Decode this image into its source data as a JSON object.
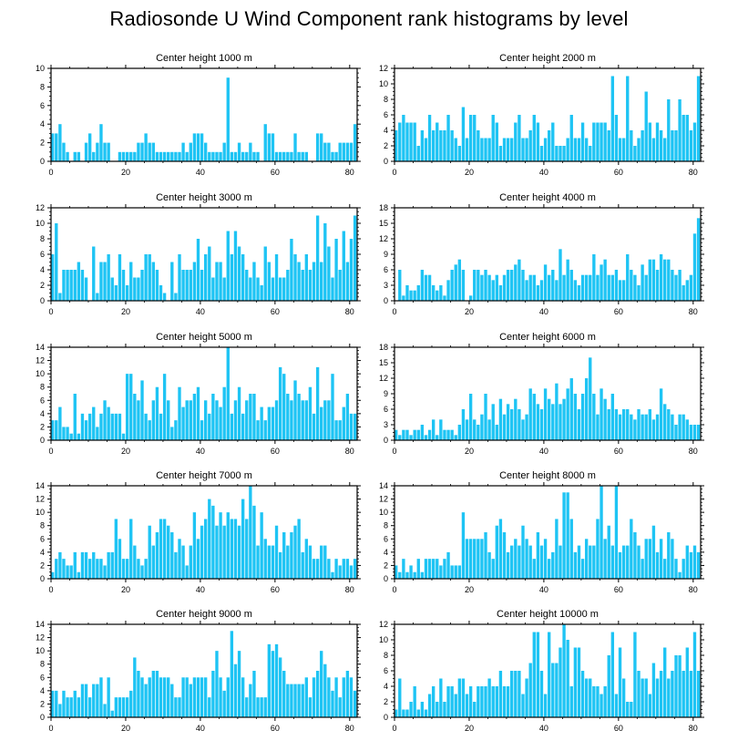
{
  "title": "Radiosonde U Wind Component rank histograms by level",
  "bar_color": "#1ec4f4",
  "chart_data": [
    {
      "type": "bar",
      "title": "Center height 1000 m",
      "xlim": [
        0,
        82
      ],
      "xticks": [
        0,
        20,
        40,
        60,
        80
      ],
      "ylim": [
        0,
        10
      ],
      "yticks": [
        0,
        2,
        4,
        6,
        8,
        10
      ],
      "values": [
        3,
        3,
        4,
        2,
        1,
        0,
        1,
        1,
        0,
        2,
        3,
        1,
        2,
        4,
        2,
        2,
        0,
        0,
        1,
        1,
        1,
        1,
        1,
        2,
        2,
        3,
        2,
        2,
        1,
        1,
        1,
        1,
        1,
        1,
        1,
        2,
        1,
        2,
        3,
        3,
        3,
        2,
        1,
        1,
        1,
        1,
        2,
        9,
        1,
        1,
        2,
        1,
        1,
        2,
        1,
        1,
        0,
        4,
        3,
        3,
        1,
        1,
        1,
        1,
        1,
        3,
        1,
        1,
        1,
        0,
        0,
        3,
        3,
        2,
        2,
        1,
        1,
        2,
        2,
        2,
        2,
        4
      ]
    },
    {
      "type": "bar",
      "title": "Center height 2000 m",
      "xlim": [
        0,
        82
      ],
      "xticks": [
        0,
        20,
        40,
        60,
        80
      ],
      "ylim": [
        0,
        12
      ],
      "yticks": [
        0,
        2,
        4,
        6,
        8,
        10,
        12
      ],
      "values": [
        4,
        5,
        6,
        5,
        5,
        5,
        2,
        4,
        3,
        6,
        4,
        5,
        4,
        4,
        6,
        4,
        3,
        2,
        7,
        3,
        6,
        6,
        4,
        3,
        3,
        3,
        6,
        5,
        2,
        3,
        3,
        3,
        5,
        6,
        3,
        3,
        4,
        6,
        5,
        2,
        3,
        4,
        5,
        2,
        2,
        2,
        3,
        6,
        3,
        3,
        5,
        3,
        2,
        5,
        5,
        5,
        5,
        4,
        11,
        6,
        3,
        3,
        11,
        4,
        2,
        3,
        4,
        9,
        5,
        3,
        5,
        4,
        3,
        8,
        4,
        4,
        8,
        6,
        6,
        4,
        5,
        11
      ]
    },
    {
      "type": "bar",
      "title": "Center height 3000 m",
      "xlim": [
        0,
        82
      ],
      "xticks": [
        0,
        20,
        40,
        60,
        80
      ],
      "ylim": [
        0,
        12
      ],
      "yticks": [
        0,
        2,
        4,
        6,
        8,
        10,
        12
      ],
      "values": [
        6,
        10,
        1,
        4,
        4,
        4,
        4,
        5,
        4,
        3,
        0,
        7,
        1,
        5,
        5,
        6,
        3,
        2,
        6,
        4,
        2,
        5,
        3,
        3,
        4,
        6,
        6,
        5,
        4,
        2,
        1,
        0,
        5,
        1,
        6,
        4,
        4,
        4,
        5,
        8,
        4,
        6,
        7,
        3,
        5,
        5,
        3,
        9,
        6,
        9,
        7,
        6,
        4,
        3,
        5,
        3,
        2,
        7,
        5,
        3,
        6,
        3,
        3,
        4,
        8,
        6,
        5,
        4,
        6,
        4,
        5,
        11,
        5,
        10,
        7,
        3,
        8,
        4,
        9,
        5,
        8,
        11
      ]
    },
    {
      "type": "bar",
      "title": "Center height 4000 m",
      "xlim": [
        0,
        82
      ],
      "xticks": [
        0,
        20,
        40,
        60,
        80
      ],
      "ylim": [
        0,
        18
      ],
      "yticks": [
        0,
        3,
        6,
        9,
        12,
        15,
        18
      ],
      "values": [
        0,
        6,
        1,
        3,
        2,
        2,
        3,
        6,
        5,
        5,
        3,
        2,
        3,
        1,
        4,
        6,
        7,
        8,
        6,
        0,
        1,
        6,
        6,
        5,
        6,
        5,
        4,
        5,
        3,
        5,
        6,
        6,
        7,
        8,
        6,
        4,
        5,
        5,
        3,
        4,
        7,
        5,
        6,
        4,
        10,
        5,
        8,
        6,
        4,
        3,
        5,
        5,
        5,
        9,
        5,
        7,
        8,
        5,
        5,
        6,
        4,
        4,
        9,
        6,
        5,
        3,
        7,
        5,
        8,
        8,
        6,
        9,
        8,
        8,
        6,
        5,
        6,
        3,
        4,
        5,
        13,
        16
      ]
    },
    {
      "type": "bar",
      "title": "Center height 5000 m",
      "xlim": [
        0,
        82
      ],
      "xticks": [
        0,
        20,
        40,
        60,
        80
      ],
      "ylim": [
        0,
        14
      ],
      "yticks": [
        0,
        2,
        4,
        6,
        8,
        10,
        12,
        14
      ],
      "values": [
        3,
        3,
        5,
        2,
        2,
        1,
        7,
        1,
        4,
        3,
        4,
        5,
        2,
        4,
        6,
        5,
        4,
        4,
        4,
        1,
        10,
        10,
        7,
        6,
        9,
        4,
        3,
        6,
        8,
        4,
        10,
        6,
        2,
        3,
        8,
        5,
        6,
        6,
        7,
        8,
        3,
        6,
        4,
        7,
        6,
        5,
        8,
        14,
        4,
        6,
        8,
        4,
        6,
        7,
        7,
        3,
        5,
        3,
        5,
        5,
        6,
        11,
        10,
        7,
        6,
        9,
        7,
        6,
        6,
        8,
        4,
        11,
        5,
        6,
        6,
        10,
        3,
        3,
        5,
        7,
        4,
        4
      ]
    },
    {
      "type": "bar",
      "title": "Center height 6000 m",
      "xlim": [
        0,
        82
      ],
      "xticks": [
        0,
        20,
        40,
        60,
        80
      ],
      "ylim": [
        0,
        18
      ],
      "yticks": [
        0,
        3,
        6,
        9,
        12,
        15,
        18
      ],
      "values": [
        2,
        1,
        2,
        2,
        1,
        2,
        2,
        3,
        1,
        2,
        4,
        1,
        4,
        2,
        2,
        2,
        1,
        3,
        6,
        4,
        9,
        4,
        3,
        5,
        9,
        4,
        7,
        3,
        8,
        5,
        7,
        6,
        8,
        6,
        4,
        5,
        10,
        9,
        7,
        6,
        10,
        8,
        7,
        11,
        7,
        8,
        10,
        12,
        9,
        6,
        9,
        12,
        16,
        9,
        5,
        10,
        8,
        6,
        9,
        6,
        5,
        6,
        6,
        5,
        4,
        6,
        5,
        5,
        6,
        4,
        5,
        10,
        7,
        6,
        5,
        3,
        5,
        5,
        4,
        3,
        3,
        3
      ]
    },
    {
      "type": "bar",
      "title": "Center height 7000 m",
      "xlim": [
        0,
        82
      ],
      "xticks": [
        0,
        20,
        40,
        60,
        80
      ],
      "ylim": [
        0,
        14
      ],
      "yticks": [
        0,
        2,
        4,
        6,
        8,
        10,
        12,
        14
      ],
      "values": [
        1,
        3,
        4,
        3,
        2,
        2,
        4,
        1,
        4,
        4,
        3,
        4,
        3,
        3,
        2,
        4,
        4,
        9,
        6,
        3,
        3,
        9,
        5,
        3,
        2,
        3,
        8,
        5,
        7,
        9,
        9,
        8,
        7,
        4,
        6,
        5,
        2,
        5,
        10,
        6,
        8,
        9,
        12,
        11,
        8,
        10,
        8,
        10,
        9,
        9,
        8,
        12,
        9,
        14,
        11,
        5,
        10,
        6,
        5,
        5,
        8,
        4,
        7,
        5,
        7,
        8,
        9,
        4,
        6,
        5,
        3,
        3,
        5,
        5,
        3,
        1,
        3,
        2,
        3,
        3,
        2,
        3
      ]
    },
    {
      "type": "bar",
      "title": "Center height 8000 m",
      "xlim": [
        0,
        82
      ],
      "xticks": [
        0,
        20,
        40,
        60,
        80
      ],
      "ylim": [
        0,
        14
      ],
      "yticks": [
        0,
        2,
        4,
        6,
        8,
        10,
        12,
        14
      ],
      "values": [
        2,
        1,
        3,
        1,
        2,
        1,
        3,
        1,
        3,
        3,
        3,
        3,
        2,
        3,
        4,
        2,
        2,
        2,
        10,
        6,
        6,
        6,
        6,
        6,
        7,
        4,
        3,
        8,
        9,
        7,
        4,
        5,
        6,
        5,
        8,
        6,
        5,
        3,
        7,
        5,
        6,
        3,
        4,
        9,
        5,
        13,
        13,
        9,
        4,
        5,
        3,
        6,
        5,
        5,
        9,
        14,
        6,
        8,
        5,
        14,
        4,
        5,
        5,
        9,
        7,
        5,
        3,
        6,
        6,
        8,
        4,
        6,
        3,
        7,
        6,
        3,
        1,
        3,
        5,
        4,
        5,
        4
      ]
    },
    {
      "type": "bar",
      "title": "Center height 9000 m",
      "xlim": [
        0,
        82
      ],
      "xticks": [
        0,
        20,
        40,
        60,
        80
      ],
      "ylim": [
        0,
        14
      ],
      "yticks": [
        0,
        2,
        4,
        6,
        8,
        10,
        12,
        14
      ],
      "values": [
        4,
        4,
        2,
        4,
        3,
        3,
        4,
        3,
        5,
        5,
        3,
        5,
        5,
        6,
        2,
        6,
        1,
        3,
        3,
        3,
        3,
        4,
        9,
        7,
        6,
        5,
        6,
        7,
        7,
        6,
        6,
        6,
        5,
        3,
        3,
        6,
        6,
        5,
        6,
        6,
        6,
        6,
        3,
        7,
        10,
        6,
        4,
        6,
        13,
        8,
        10,
        6,
        3,
        5,
        7,
        3,
        3,
        3,
        11,
        10,
        11,
        9,
        7,
        5,
        5,
        5,
        5,
        5,
        6,
        3,
        6,
        7,
        10,
        8,
        6,
        4,
        6,
        3,
        6,
        7,
        6,
        4
      ]
    },
    {
      "type": "bar",
      "title": "Center height 10000 m",
      "xlim": [
        0,
        82
      ],
      "xticks": [
        0,
        20,
        40,
        60,
        80
      ],
      "ylim": [
        0,
        12
      ],
      "yticks": [
        0,
        2,
        4,
        6,
        8,
        10,
        12
      ],
      "values": [
        1,
        5,
        1,
        1,
        2,
        4,
        1,
        2,
        1,
        3,
        4,
        2,
        5,
        2,
        4,
        4,
        3,
        5,
        5,
        3,
        4,
        2,
        4,
        4,
        4,
        5,
        4,
        4,
        6,
        4,
        4,
        6,
        6,
        6,
        3,
        5,
        7,
        11,
        11,
        6,
        3,
        11,
        7,
        7,
        9,
        12,
        10,
        4,
        9,
        9,
        6,
        5,
        5,
        4,
        4,
        3,
        4,
        8,
        11,
        3,
        9,
        5,
        2,
        2,
        11,
        6,
        5,
        5,
        3,
        7,
        5,
        6,
        9,
        5,
        6,
        8,
        8,
        6,
        9,
        6,
        11,
        6
      ]
    }
  ]
}
